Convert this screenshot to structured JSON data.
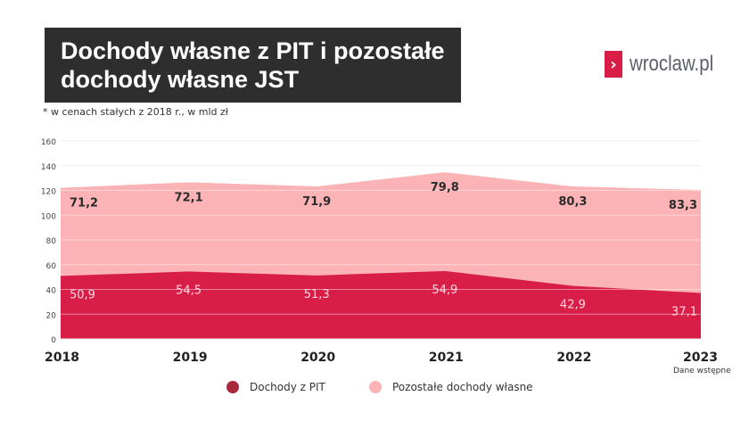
{
  "title": "Dochody własne z PIT i pozostałe\ndochody własne JST",
  "subtitle": "* w cenach stałych z 2018 r., w mld zł",
  "logo": "wroclaw.pl",
  "colors": {
    "pit": "#d81e47",
    "pit_legend": "#a92a3c",
    "other": "#fbb3b5",
    "title_bg": "#2e2e2e"
  },
  "chart_data": {
    "type": "area",
    "stacked": true,
    "categories": [
      "2018",
      "2019",
      "2020",
      "2021",
      "2022",
      "2023"
    ],
    "series": [
      {
        "name": "Dochody z PIT",
        "values": [
          50.9,
          54.5,
          51.3,
          54.9,
          42.9,
          37.1
        ],
        "labels": [
          "50,9",
          "54,5",
          "51,3",
          "54,9",
          "42,9",
          "37,1"
        ]
      },
      {
        "name": "Pozostałe dochody własne",
        "values": [
          71.2,
          72.1,
          71.9,
          79.8,
          80.3,
          83.3
        ],
        "labels": [
          "71,2",
          "72,1",
          "71,9",
          "79,8",
          "80,3",
          "83,3"
        ]
      }
    ],
    "ylim": [
      0,
      160
    ],
    "yticks": [
      "0",
      "20",
      "40",
      "60",
      "80",
      "100",
      "120",
      "140",
      "160"
    ],
    "grid": true,
    "legend": "bottom",
    "annotation": "Dane wstępne"
  }
}
